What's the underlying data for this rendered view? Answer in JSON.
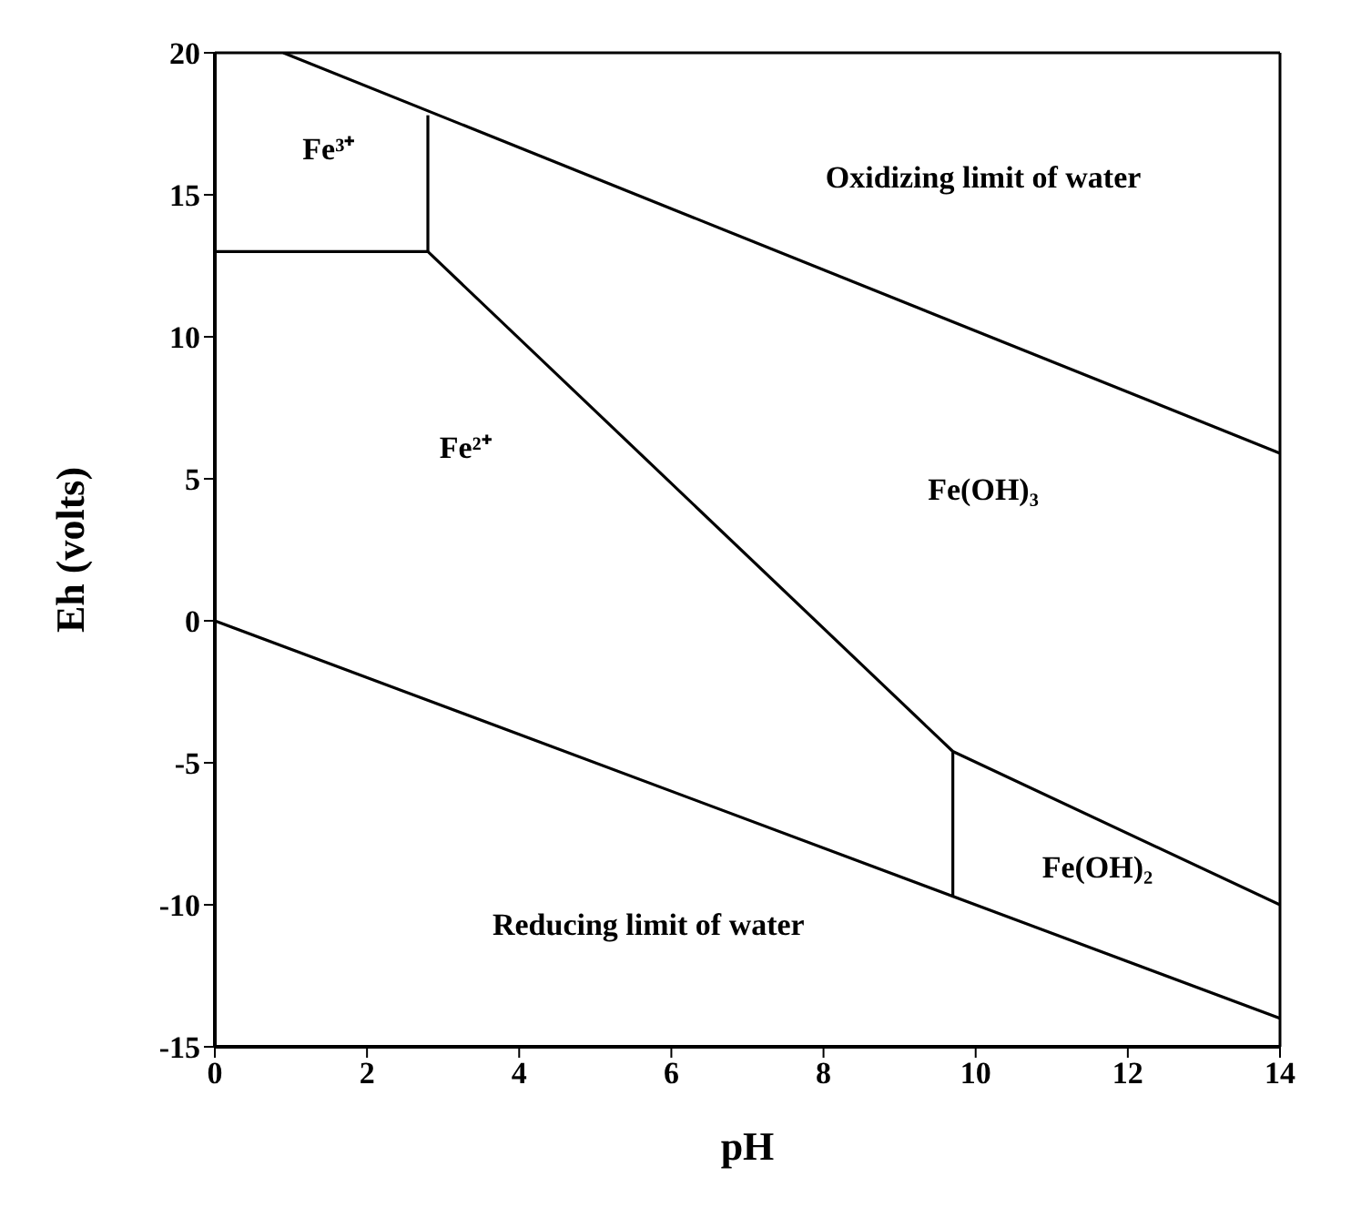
{
  "chart_data": {
    "type": "line",
    "xlabel": "pH",
    "ylabel": "Eh (volts)",
    "xlim": [
      0,
      14
    ],
    "xticks": [
      0,
      2,
      4,
      6,
      8,
      10,
      12,
      14
    ],
    "ylim": [
      -15,
      20
    ],
    "yticks": [
      -15,
      -10,
      -5,
      0,
      5,
      10,
      15,
      20
    ],
    "grid": false,
    "marker": "none",
    "line_style": "solid",
    "series": [
      {
        "color": "#000000",
        "x": [
          0.9,
          14
        ],
        "values": [
          20,
          5.9
        ]
      },
      {
        "color": "#000000",
        "x": [
          0,
          2.8
        ],
        "values": [
          13,
          13
        ]
      },
      {
        "color": "#000000",
        "x": [
          2.8,
          2.8
        ],
        "values": [
          13,
          17.8
        ]
      },
      {
        "color": "#000000",
        "x": [
          2.8,
          9.7,
          14
        ],
        "values": [
          13,
          -4.6,
          -10
        ]
      },
      {
        "color": "#000000",
        "x": [
          9.7,
          9.7
        ],
        "values": [
          -4.6,
          -9.7
        ]
      },
      {
        "color": "#000000",
        "x": [
          0,
          14
        ],
        "values": [
          0,
          -14
        ]
      }
    ],
    "annotations": [
      "Fe³⁺",
      "Fe²⁺",
      "Oxidizing limit of water",
      "Fe(OH)₃",
      "Fe(OH)₂",
      "Reducing limit of water"
    ]
  }
}
